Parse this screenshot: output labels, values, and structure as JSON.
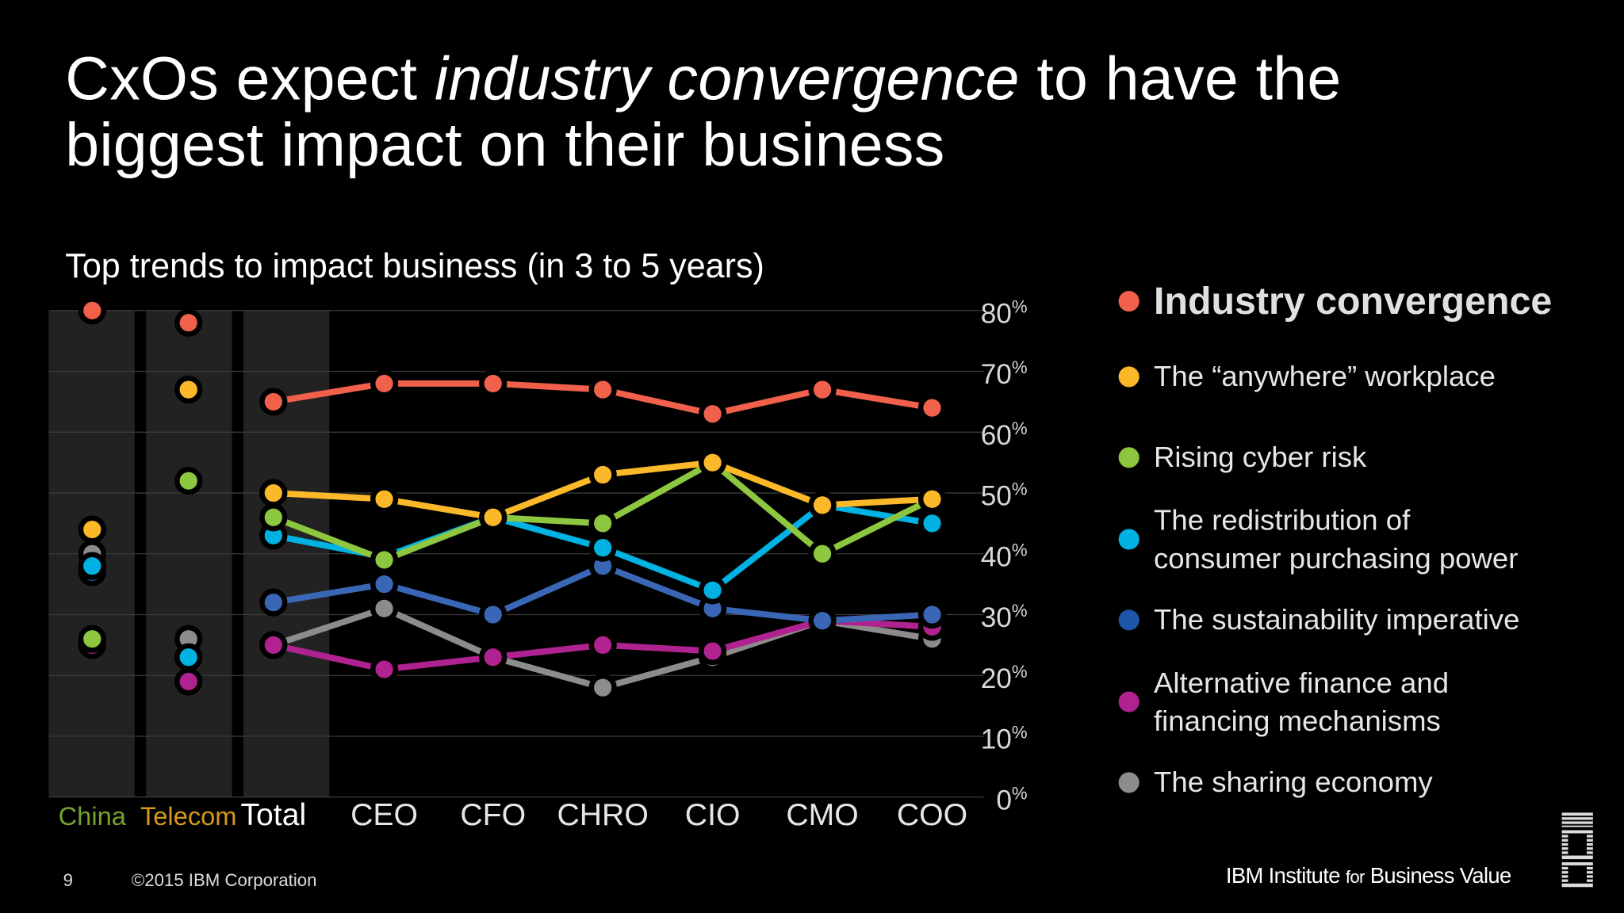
{
  "title": {
    "part1": "CxOs expect ",
    "emphasis": "industry convergence",
    "part2": " to have the",
    "line2": "biggest impact on their business"
  },
  "subtitle": "Top trends to impact business (in 3 to 5 years)",
  "chart_data": {
    "type": "line",
    "title": "Top trends to impact business (in 3 to 5 years)",
    "categories": [
      "China",
      "Telecom",
      "Total",
      "CEO",
      "CFO",
      "CHRO",
      "CIO",
      "CMO",
      "COO"
    ],
    "category_colors": [
      "#76a32c",
      "#d49a16",
      "#ffffff",
      "#e6e6e6",
      "#e6e6e6",
      "#e6e6e6",
      "#e6e6e6",
      "#e6e6e6",
      "#e6e6e6"
    ],
    "highlighted_columns": [
      "China",
      "Telecom",
      "Total"
    ],
    "lines_connect_from": "Total",
    "ylim": [
      0,
      80
    ],
    "yticks": [
      "0%",
      "10%",
      "20%",
      "30%",
      "40%",
      "50%",
      "60%",
      "70%",
      "80%"
    ],
    "ytick_values": [
      0,
      10,
      20,
      30,
      40,
      50,
      60,
      70,
      80
    ],
    "yaxis_position": "right",
    "grid": true,
    "legend_position": "right",
    "series": [
      {
        "name": "The sharing economy",
        "color": "#8c8c8c",
        "values": [
          40,
          26,
          25,
          31,
          23,
          18,
          23,
          29,
          26
        ]
      },
      {
        "name": "Alternative finance and financing mechanisms",
        "color": "#b0228f",
        "values": [
          25,
          19,
          25,
          21,
          23,
          25,
          24,
          29,
          28
        ]
      },
      {
        "name": "The sustainability imperative",
        "color": "#3a67b5",
        "values": [
          37,
          null,
          32,
          35,
          30,
          38,
          31,
          29,
          30
        ]
      },
      {
        "name": "The redistribution of consumer purchasing power",
        "color": "#00b2e2",
        "values": [
          38,
          23,
          43,
          39.5,
          46,
          41,
          34,
          48,
          45
        ]
      },
      {
        "name": "Rising cyber risk",
        "color": "#8dc63f",
        "values": [
          26,
          52,
          46,
          39,
          46,
          45,
          55,
          40,
          49
        ]
      },
      {
        "name": "The “anywhere” workplace",
        "color": "#fbb829",
        "values": [
          44,
          67,
          50,
          49,
          46,
          53,
          55,
          48,
          49
        ]
      },
      {
        "name": "Industry convergence",
        "color": "#f0604b",
        "values": [
          80,
          78,
          65,
          68,
          68,
          67,
          63,
          67,
          64
        ]
      }
    ]
  },
  "legend": [
    {
      "label": "Industry convergence",
      "color": "#f0604b",
      "bold": true
    },
    {
      "label": "The “anywhere” workplace",
      "color": "#fbb829"
    },
    {
      "label": "Rising cyber risk",
      "color": "#8dc63f"
    },
    {
      "line1": "The redistribution of",
      "line2": "consumer purchasing power",
      "color": "#00b2e2"
    },
    {
      "label": "The sustainability imperative",
      "color": "#1f56a8"
    },
    {
      "line1": "Alternative finance and",
      "line2": "financing mechanisms",
      "color": "#b0228f"
    },
    {
      "label": "The sharing economy",
      "color": "#8c8c8c"
    }
  ],
  "footer": {
    "page": "9",
    "copyright": "©2015 IBM Corporation",
    "brand_a": "IBM Institute ",
    "brand_for": "for",
    "brand_b": " Business Value",
    "logo": "IBM"
  }
}
